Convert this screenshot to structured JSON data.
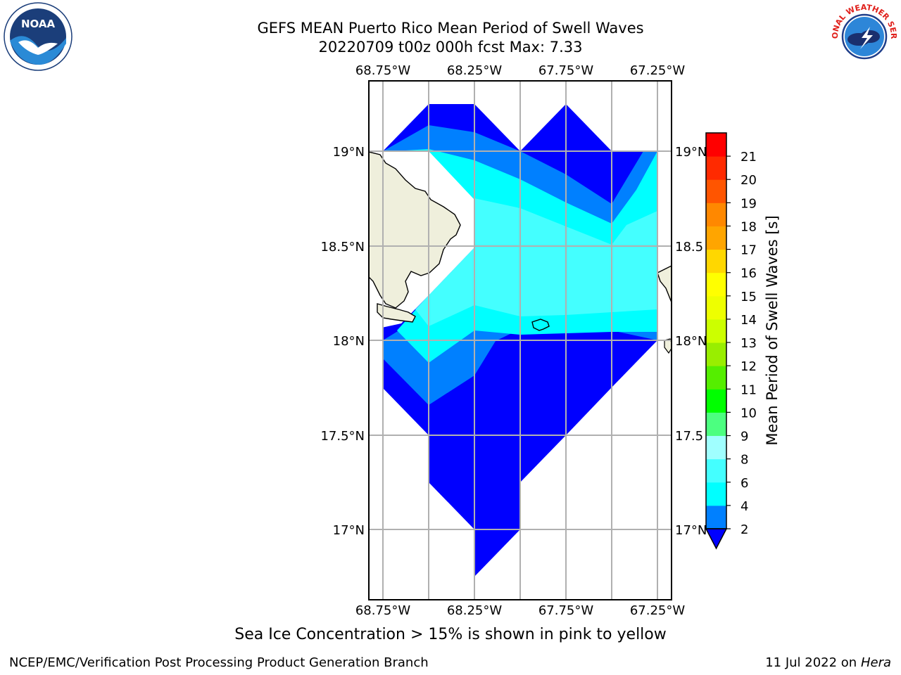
{
  "header": {
    "title_line1": "GEFS MEAN Puerto Rico Mean Period of Swell Waves",
    "title_line2": "20220709 t00z 000h fcst    Max: 7.33"
  },
  "map": {
    "lon_labels_top": [
      "68.75°W",
      "68.25°W",
      "67.75°W",
      "67.25°W"
    ],
    "lon_labels_bottom": [
      "68.75°W",
      "68.25°W",
      "67.75°W",
      "67.25°W"
    ],
    "lat_labels_left": [
      "19°N",
      "18.5°N",
      "18°N",
      "17.5°N",
      "17°N"
    ],
    "lat_labels_right": [
      "19°N",
      "18.5",
      "18°N",
      "17.5",
      "17°N"
    ],
    "land_color": "#efefdc",
    "field_colors": {
      "band_2_4": "#0000ff",
      "band_4_5": "#0080ff",
      "band_5_6": "#00ffff",
      "band_6_8": "#44ffff"
    }
  },
  "colorbar": {
    "label": "Mean Period of Swell Waves [s]",
    "ticks": [
      "2",
      "4",
      "6",
      "8",
      "9",
      "10",
      "11",
      "12",
      "13",
      "14",
      "15",
      "16",
      "17",
      "18",
      "19",
      "20",
      "21"
    ],
    "colors": [
      "#0080ff",
      "#00ffff",
      "#44ffff",
      "#a0ffff",
      "#4cff80",
      "#00ff00",
      "#55ee00",
      "#99ee00",
      "#ccff00",
      "#eeff00",
      "#ffff00",
      "#ffd700",
      "#ffa500",
      "#ff8800",
      "#ff5500",
      "#ff2a00",
      "#ff0000"
    ],
    "under_color": "#0000ff"
  },
  "footer": {
    "note": "Sea Ice Concentration > 15% is shown in pink to yellow",
    "credit_left": "NCEP/EMC/Verification Post Processing Product Generation Branch",
    "date": "11 Jul 2022 on ",
    "host": "Hera"
  },
  "logos": {
    "left_text": "NOAA",
    "right_text": "NATIONAL WEATHER SERVICE"
  }
}
